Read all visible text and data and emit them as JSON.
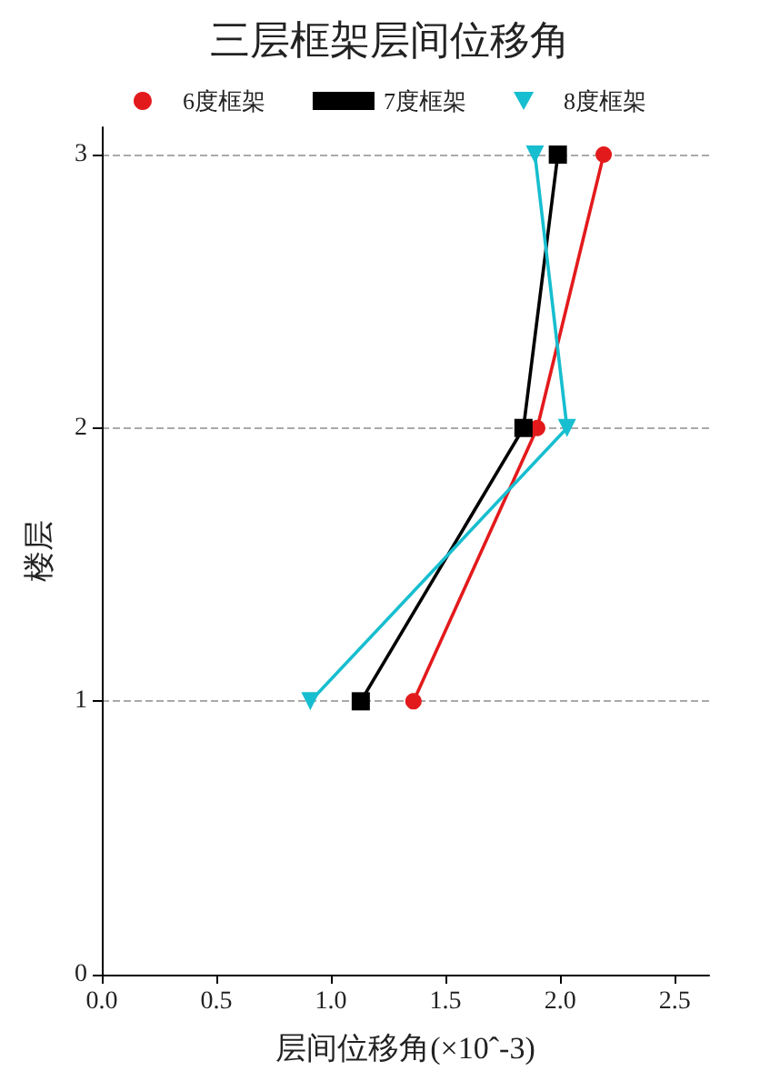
{
  "chart_data": {
    "type": "line",
    "title": "三层框架层间位移角",
    "xlabel": "层间位移角(×10ˆ-3)",
    "ylabel": "楼层",
    "series": [
      {
        "name": "6度框架",
        "color": "#e31a1c",
        "marker": "circle",
        "x": [
          1.36,
          1.9,
          2.19
        ],
        "values": [
          1,
          2,
          3
        ]
      },
      {
        "name": "7度框架",
        "color": "#000000",
        "marker": "square",
        "x": [
          1.13,
          1.84,
          1.99
        ],
        "values": [
          1,
          2,
          3
        ]
      },
      {
        "name": "8度框架",
        "color": "#17becf",
        "marker": "triangle",
        "x": [
          0.91,
          2.03,
          1.89
        ],
        "values": [
          1,
          2,
          3
        ]
      }
    ],
    "xlim": [
      0,
      2.65
    ],
    "xticks": [
      {
        "value": 0,
        "label": "0.0"
      },
      {
        "value": 0.5,
        "label": "0.5"
      },
      {
        "value": 1,
        "label": "1.0"
      },
      {
        "value": 1.5,
        "label": "1.5"
      },
      {
        "value": 2,
        "label": "2.0"
      },
      {
        "value": 2.5,
        "label": "2.5"
      }
    ],
    "ylim": [
      0,
      3.1
    ],
    "yticks": [
      0,
      1,
      2,
      3
    ],
    "grid": "y",
    "legend": "top",
    "line_style": "solid"
  }
}
